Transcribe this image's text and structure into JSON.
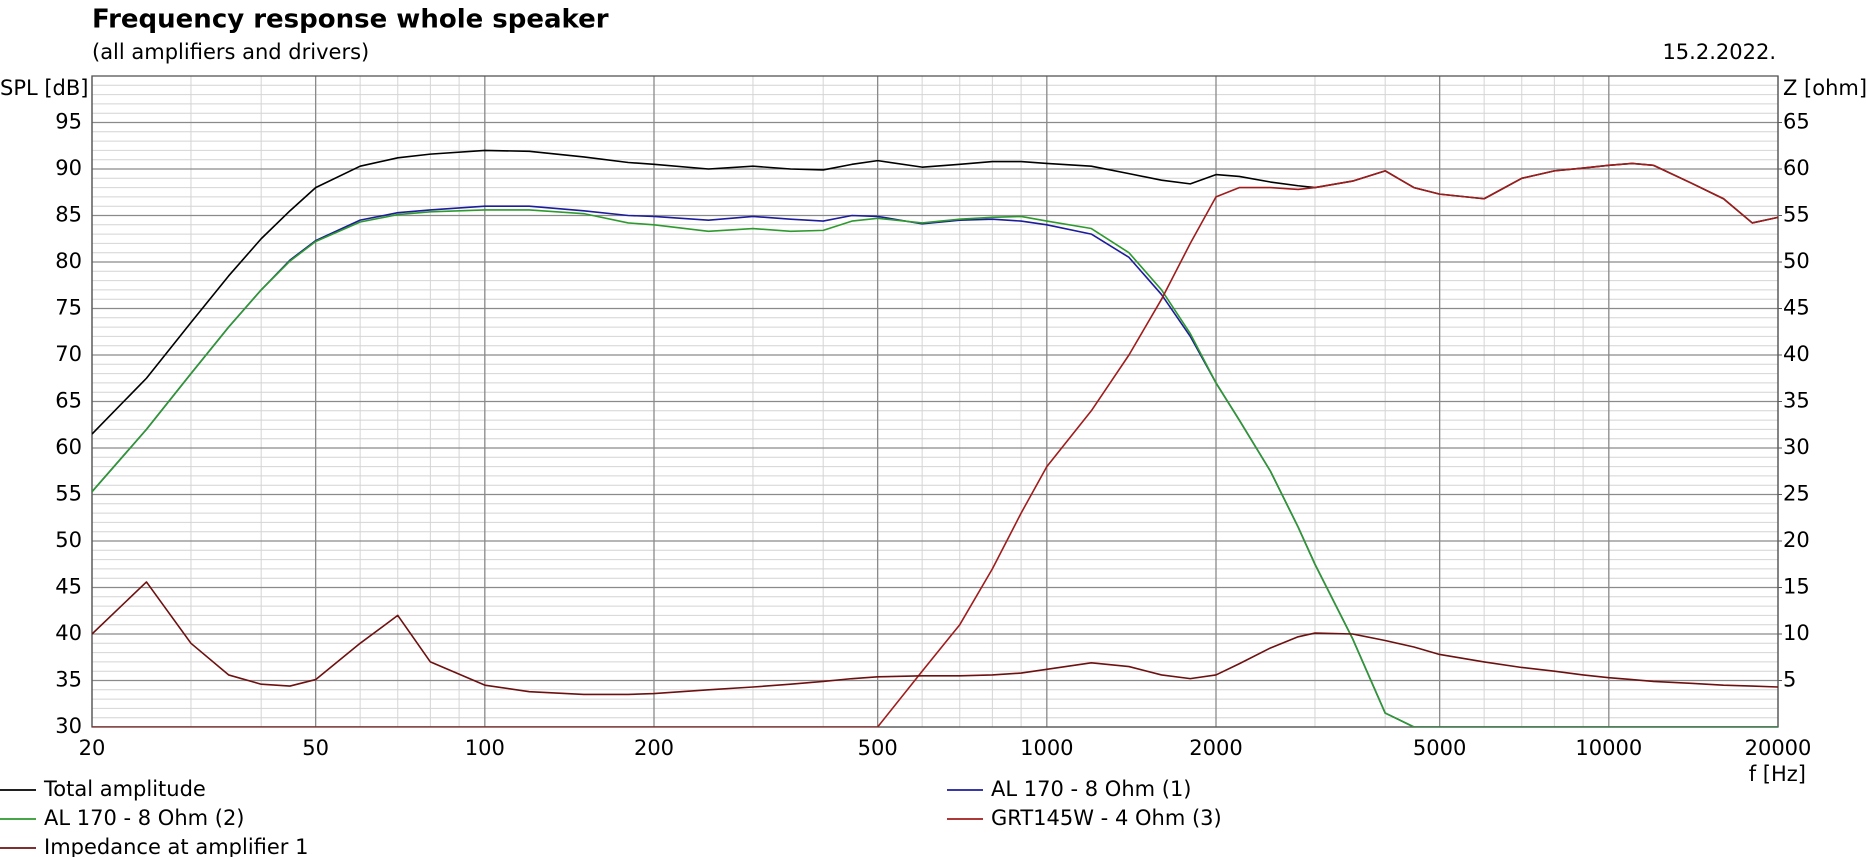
{
  "chart_data": {
    "type": "line",
    "title": "Frequency response whole speaker",
    "subtitle": "(all amplifiers and drivers)",
    "date": "15.2.2022.",
    "ylabel": "SPL [dB]",
    "y2label": "Z [ohm]",
    "xlabel": "f [Hz]",
    "xscale": "log",
    "grid": true,
    "minor_grid": true,
    "y_minor_step": 1,
    "legend": "bottom",
    "xlim": [
      20,
      20000
    ],
    "xticks": [
      20,
      50,
      100,
      200,
      500,
      1000,
      2000,
      5000,
      10000,
      20000
    ],
    "ylim": [
      30,
      100
    ],
    "yticks": [
      30,
      35,
      40,
      45,
      50,
      55,
      60,
      65,
      70,
      75,
      80,
      85,
      90,
      95
    ],
    "y2lim": [
      0,
      70
    ],
    "y2ticks": [
      5,
      10,
      15,
      20,
      25,
      30,
      35,
      40,
      45,
      50,
      55,
      60,
      65
    ],
    "x": [
      20,
      25,
      30,
      35,
      40,
      45,
      50,
      60,
      70,
      80,
      100,
      120,
      150,
      180,
      200,
      250,
      300,
      350,
      400,
      450,
      500,
      600,
      700,
      800,
      900,
      1000,
      1200,
      1400,
      1600,
      1800,
      2000,
      2200,
      2500,
      2800,
      3000,
      3500,
      4000,
      4500,
      5000,
      6000,
      7000,
      8000,
      9000,
      10000,
      11000,
      12000,
      14000,
      16000,
      18000,
      20000
    ],
    "series": [
      {
        "name": "Total amplitude",
        "color": "#000000",
        "values": [
          61.5,
          67.5,
          73.5,
          78.5,
          82.5,
          85.5,
          88,
          90.3,
          91.2,
          91.6,
          92,
          91.9,
          91.3,
          90.7,
          90.5,
          90.0,
          90.3,
          90.0,
          89.9,
          90.5,
          90.9,
          90.2,
          90.5,
          90.8,
          90.8,
          90.6,
          90.3,
          89.5,
          88.8,
          88.4,
          89.4,
          89.2,
          88.6,
          88.2,
          88.0,
          88.7,
          89.8,
          88.0,
          87.3,
          86.8,
          89.0,
          89.8,
          90.1,
          90.4,
          90.6,
          90.4,
          88.5,
          86.8,
          84.2,
          84.8
        ]
      },
      {
        "name": "AL 170 - 8 Ohm (1)",
        "color": "#1c1c9c",
        "values": [
          55.3,
          62,
          68,
          73,
          77,
          80.2,
          82.3,
          84.5,
          85.3,
          85.6,
          86,
          86,
          85.5,
          85,
          84.9,
          84.5,
          84.9,
          84.6,
          84.4,
          85,
          84.9,
          84.1,
          84.5,
          84.6,
          84.4,
          84.0,
          83,
          80.5,
          76.5,
          72,
          67,
          63,
          57.5,
          51.5,
          47.5,
          39.5,
          31.5,
          30,
          30,
          30,
          30,
          30,
          30,
          30,
          30,
          30,
          30,
          30,
          30,
          30
        ]
      },
      {
        "name": "AL 170 - 8 Ohm (2)",
        "color": "#2e9a2e",
        "values": [
          55.3,
          62,
          68,
          73,
          77,
          80.1,
          82.2,
          84.3,
          85.1,
          85.4,
          85.6,
          85.6,
          85.2,
          84.2,
          84,
          83.3,
          83.6,
          83.3,
          83.4,
          84.4,
          84.7,
          84.2,
          84.6,
          84.8,
          84.9,
          84.4,
          83.6,
          81,
          77,
          72.3,
          67,
          63,
          57.5,
          51.5,
          47.5,
          39.5,
          31.5,
          30,
          30,
          30,
          30,
          30,
          30,
          30,
          30,
          30,
          30,
          30,
          30,
          30
        ]
      },
      {
        "name": "GRT145W - 4 Ohm (3)",
        "color": "#a01c1c",
        "values": [
          30,
          30,
          30,
          30,
          30,
          30,
          30,
          30,
          30,
          30,
          30,
          30,
          30,
          30,
          30,
          30,
          30,
          30,
          30,
          30,
          30,
          36,
          41,
          47,
          53,
          58,
          64,
          70,
          76,
          82,
          87,
          88,
          88,
          87.8,
          88.0,
          88.7,
          89.8,
          88.0,
          87.3,
          86.8,
          89.0,
          89.8,
          90.1,
          90.4,
          90.6,
          90.4,
          88.5,
          86.8,
          84.2,
          84.8
        ]
      },
      {
        "name": "Impedance at amplifier 1",
        "color": "#6e1010",
        "axis": "y2",
        "values": [
          10,
          15.6,
          9,
          5.6,
          4.6,
          4.4,
          5.1,
          9,
          12,
          7,
          4.5,
          3.8,
          3.5,
          3.5,
          3.6,
          4,
          4.3,
          4.6,
          4.9,
          5.2,
          5.4,
          5.5,
          5.5,
          5.6,
          5.8,
          6.2,
          6.9,
          6.5,
          5.6,
          5.2,
          5.6,
          6.8,
          8.5,
          9.7,
          10.1,
          10.0,
          9.3,
          8.6,
          7.8,
          7.0,
          6.4,
          6.0,
          5.6,
          5.3,
          5.1,
          4.9,
          4.7,
          4.5,
          4.4,
          4.3
        ]
      }
    ]
  }
}
